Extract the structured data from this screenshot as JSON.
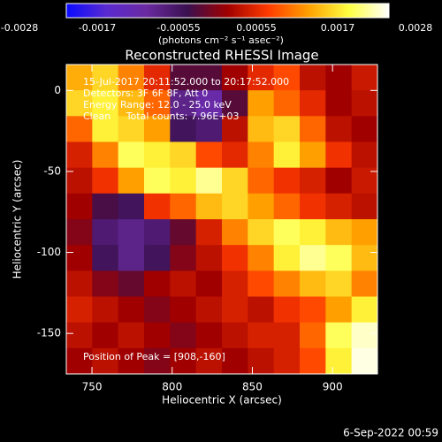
{
  "chart_data": {
    "type": "heatmap",
    "title": "Reconstructed RHESSI Image",
    "x_label": "Heliocentric X (arcsec)",
    "y_label": "Heliocentric Y (arcsec)",
    "xlim": [
      734,
      928
    ],
    "ylim": [
      -175,
      16
    ],
    "xticks": [
      750,
      800,
      850,
      900
    ],
    "yticks": [
      0,
      -50,
      -100,
      -150
    ],
    "colorbar": {
      "lim": [
        -0.0028,
        0.0028
      ],
      "ticks": [
        -0.0028,
        -0.0017,
        -0.00055,
        0.00055,
        0.0017,
        0.0028
      ],
      "label": "(photons cm⁻² s⁻¹ asec⁻²)"
    },
    "colormap": [
      "#0a0aff",
      "#5a2ad0",
      "#6a2aa0",
      "#3a1050",
      "#a00000",
      "#ff3a00",
      "#ffa000",
      "#ffff40",
      "#ffffff"
    ],
    "annotations": [
      "15-Jul-2017 20:11:52.000 to 20:17:52.000",
      "Detectors: 3F 6F 8F, Att 0",
      "Energy Range: 12.0 - 25.0 keV",
      "Clean     Total counts: 7.96E+03",
      "Position of Peak = [908,-160]"
    ],
    "footer": "6-Sep-2022 00:59",
    "z": [
      [
        0.0015,
        0.0018,
        0.0012,
        0.0005,
        -0.0005,
        -0.0005,
        0,
        0.0005,
        0.0008,
        0.0002,
        0,
        0.0003
      ],
      [
        0.0018,
        0.002,
        0.0016,
        0.001,
        -0.0012,
        -0.0015,
        -0.0005,
        0.0014,
        0.001,
        0.0005,
        0,
        0.0002
      ],
      [
        0.001,
        0.002,
        0.0018,
        0.0014,
        -0.0008,
        -0.001,
        0.0002,
        0.0016,
        0.0018,
        0.001,
        0.0002,
        0
      ],
      [
        0.0004,
        0.0012,
        0.0022,
        0.002,
        0.0018,
        0.0008,
        0.0005,
        0.0012,
        0.002,
        0.0014,
        0.0006,
        0.0002
      ],
      [
        0.0002,
        0.0006,
        0.0014,
        0.0022,
        0.002,
        0.0024,
        0.0018,
        0.001,
        0.0006,
        0.0004,
        0,
        0.0003
      ],
      [
        0,
        -0.0006,
        -0.0008,
        0.0006,
        0.001,
        0.0016,
        0.0018,
        0.0014,
        0.001,
        0.0006,
        0.0004,
        0.0002
      ],
      [
        -0.0002,
        -0.001,
        -0.0012,
        -0.001,
        -0.0004,
        0.0004,
        0.0012,
        0.0018,
        0.0022,
        0.002,
        0.0016,
        0.0014
      ],
      [
        0,
        -0.0008,
        -0.0012,
        -0.0008,
        -0.0002,
        0.0002,
        0.0006,
        0.0012,
        0.002,
        0.0024,
        0.0022,
        0.0016
      ],
      [
        0.0002,
        -0.0002,
        -0.0004,
        0,
        0.0002,
        0,
        0.0004,
        0.0008,
        0.0012,
        0.0016,
        0.0018,
        0.0012
      ],
      [
        0.0004,
        0.0002,
        0,
        -0.0002,
        0,
        0.0002,
        0.0004,
        0.0002,
        0.0006,
        0.0008,
        0.0014,
        0.002
      ],
      [
        0.0002,
        0,
        0.0002,
        0,
        -0.0002,
        0,
        0.0002,
        0.0004,
        0.0004,
        0.001,
        0.0022,
        0.0026
      ],
      [
        0,
        0.0002,
        0,
        -0.0002,
        0,
        0.0002,
        0,
        0.0002,
        0.0004,
        0.0008,
        0.002,
        0.0027
      ]
    ]
  }
}
